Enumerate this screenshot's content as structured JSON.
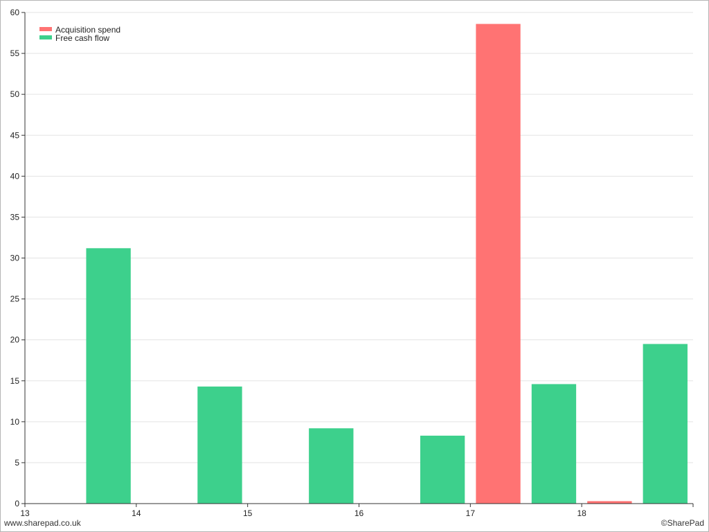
{
  "chart_data": {
    "type": "bar",
    "title": "",
    "xlabel": "",
    "ylabel": "",
    "x_ticks": [
      "13",
      "14",
      "15",
      "16",
      "17",
      "18"
    ],
    "xlim": [
      13,
      19
    ],
    "ylim": [
      0,
      60
    ],
    "y_ticks": [
      0,
      5,
      10,
      15,
      20,
      25,
      30,
      35,
      40,
      45,
      50,
      55,
      60
    ],
    "grid": true,
    "legend_position": "top-left",
    "series": [
      {
        "name": "Acquisition spend",
        "color": "#ff7373",
        "points": [
          {
            "x": 17,
            "value": 58.6
          },
          {
            "x": 18,
            "value": 0.3
          }
        ]
      },
      {
        "name": "Free cash flow",
        "color": "#3dd08c",
        "points": [
          {
            "x": 13,
            "value": 31.2
          },
          {
            "x": 14,
            "value": 14.3
          },
          {
            "x": 15,
            "value": 9.2
          },
          {
            "x": 16,
            "value": 8.3
          },
          {
            "x": 17,
            "value": 14.6
          },
          {
            "x": 18,
            "value": 19.5
          }
        ]
      }
    ]
  },
  "footer": {
    "left": "www.sharepad.co.uk",
    "right": "©SharePad"
  }
}
